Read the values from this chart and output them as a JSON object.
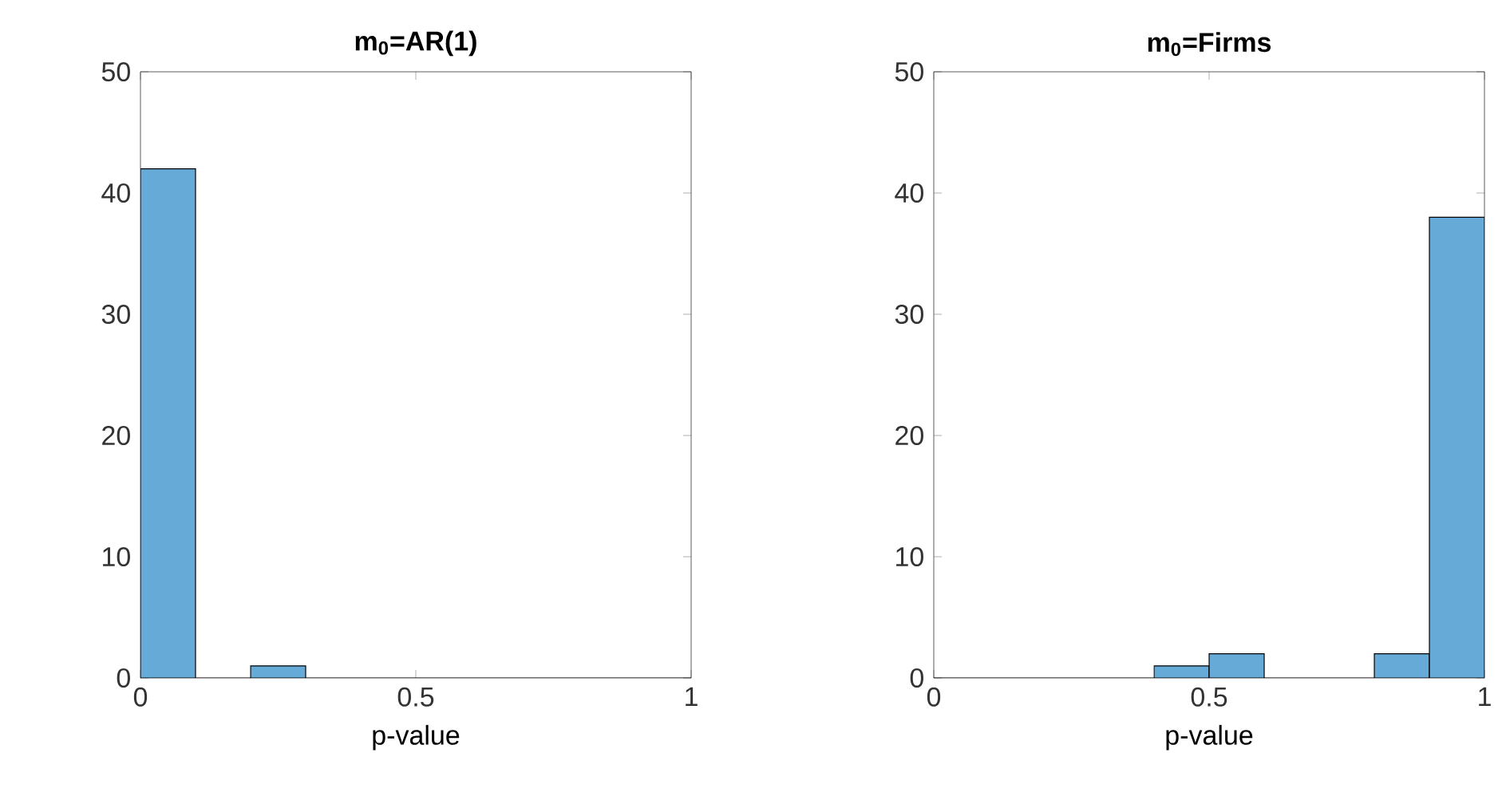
{
  "chart_data": [
    {
      "type": "histogram",
      "title": "m$_{0}$=AR(1)",
      "xlabel": "p-value",
      "bins": [
        0,
        0.1,
        0.2,
        0.3,
        0.4,
        0.5,
        0.6,
        0.7,
        0.8,
        0.9,
        1
      ],
      "values": [
        42,
        0,
        1,
        0,
        0,
        0,
        0,
        0,
        0,
        0
      ],
      "color": "#66aad7",
      "xlim": [
        0,
        1
      ],
      "ylim": [
        0,
        50
      ],
      "xticks": [
        0,
        0.5,
        1
      ],
      "yticks": [
        0,
        10,
        20,
        30,
        40,
        50
      ]
    },
    {
      "type": "histogram",
      "title": "m$_{0}$=Firms",
      "xlabel": "p-value",
      "bins": [
        0,
        0.1,
        0.2,
        0.3,
        0.4,
        0.5,
        0.6,
        0.7,
        0.8,
        0.9,
        1
      ],
      "values": [
        0,
        0,
        0,
        0,
        1,
        2,
        0,
        0,
        2,
        38
      ],
      "color": "#66aad7",
      "xlim": [
        0,
        1
      ],
      "ylim": [
        0,
        50
      ],
      "xticks": [
        0,
        0.5,
        1
      ],
      "yticks": [
        0,
        10,
        20,
        30,
        40,
        50
      ]
    }
  ]
}
